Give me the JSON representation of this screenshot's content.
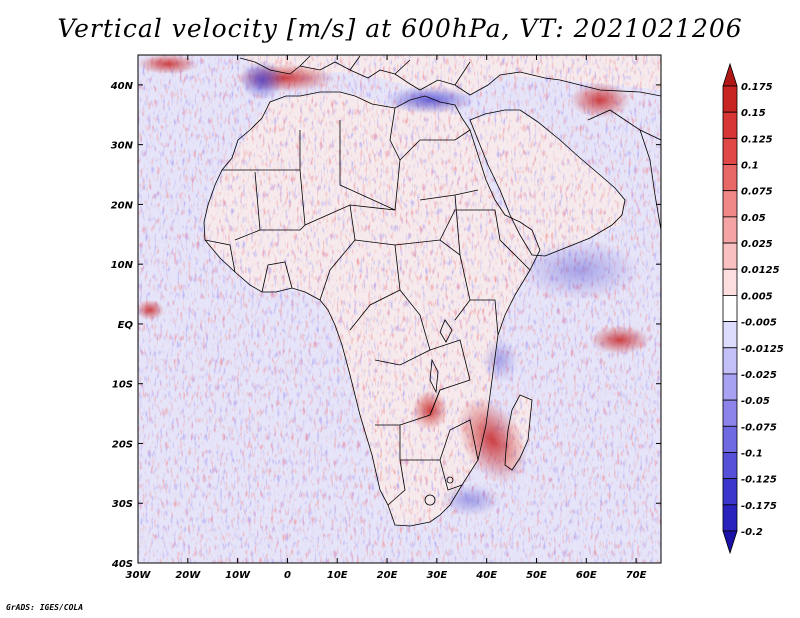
{
  "title": "Vertical velocity [m/s] at 600hPa, VT: 2021021206",
  "footer": "GrADS: IGES/COLA",
  "map": {
    "lon_range": [
      -30,
      75
    ],
    "lat_range": [
      -40,
      45
    ],
    "lon_ticks": [
      {
        "value": -30,
        "label": "30W"
      },
      {
        "value": -20,
        "label": "20W"
      },
      {
        "value": -10,
        "label": "10W"
      },
      {
        "value": 0,
        "label": "0"
      },
      {
        "value": 10,
        "label": "10E"
      },
      {
        "value": 20,
        "label": "20E"
      },
      {
        "value": 30,
        "label": "30E"
      },
      {
        "value": 40,
        "label": "40E"
      },
      {
        "value": 50,
        "label": "50E"
      },
      {
        "value": 60,
        "label": "60E"
      },
      {
        "value": 70,
        "label": "70E"
      }
    ],
    "lat_ticks": [
      {
        "value": 40,
        "label": "40N"
      },
      {
        "value": 30,
        "label": "30N"
      },
      {
        "value": 20,
        "label": "20N"
      },
      {
        "value": 10,
        "label": "10N"
      },
      {
        "value": 0,
        "label": "EQ"
      },
      {
        "value": -10,
        "label": "10S"
      },
      {
        "value": -20,
        "label": "20S"
      },
      {
        "value": -30,
        "label": "30S"
      },
      {
        "value": -40,
        "label": "40S"
      }
    ],
    "field_colors": {
      "ocean_base": "#e6e4f8",
      "land_base": "#f6eaec",
      "upward": "#d84040",
      "downward": "#5a4ee0"
    }
  },
  "colorbar": {
    "labels": [
      "0.175",
      "0.15",
      "0.125",
      "0.1",
      "0.075",
      "0.05",
      "0.025",
      "0.0125",
      "0.005",
      "-0.005",
      "-0.0125",
      "-0.025",
      "-0.05",
      "-0.075",
      "-0.1",
      "-0.125",
      "-0.175",
      "-0.2"
    ],
    "colors": [
      "#b01818",
      "#c82424",
      "#d83636",
      "#e04848",
      "#e86868",
      "#f08888",
      "#f4a4a4",
      "#f8c0c0",
      "#fcdede",
      "#ffffff",
      "#dedcfc",
      "#c4c0f8",
      "#a8a2f2",
      "#8c84ea",
      "#706ae2",
      "#5650d8",
      "#3c36cc",
      "#2a22bc",
      "#1c12a8"
    ]
  }
}
